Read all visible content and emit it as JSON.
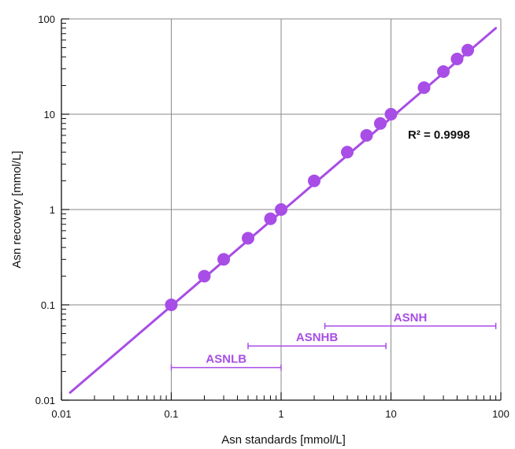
{
  "chart_data": {
    "type": "scatter",
    "xscale": "log",
    "yscale": "log",
    "xlim": [
      0.01,
      100
    ],
    "ylim": [
      0.01,
      100
    ],
    "xlabel": "Asn standards [mmol/L]",
    "ylabel": "Asn recovery [mmol/L]",
    "x_ticks": [
      "0.01",
      "0.1",
      "1",
      "10",
      "100"
    ],
    "y_ticks": [
      "0.01",
      "0.1",
      "1",
      "10",
      "100"
    ],
    "grid": true,
    "color": "#a84de6",
    "points": [
      {
        "x": 0.1,
        "y": 0.1
      },
      {
        "x": 0.2,
        "y": 0.2
      },
      {
        "x": 0.3,
        "y": 0.3
      },
      {
        "x": 0.5,
        "y": 0.5
      },
      {
        "x": 0.8,
        "y": 0.8
      },
      {
        "x": 1,
        "y": 1
      },
      {
        "x": 2,
        "y": 2
      },
      {
        "x": 4,
        "y": 4
      },
      {
        "x": 6,
        "y": 6
      },
      {
        "x": 8,
        "y": 8
      },
      {
        "x": 10,
        "y": 10
      },
      {
        "x": 20,
        "y": 19
      },
      {
        "x": 30,
        "y": 28
      },
      {
        "x": 40,
        "y": 38
      },
      {
        "x": 50,
        "y": 47
      }
    ],
    "fit_line": {
      "x": [
        0.012,
        90
      ],
      "y": [
        0.012,
        80
      ]
    },
    "r2_label": "R² = 0.9998",
    "r2_value": 0.9998,
    "ranges": [
      {
        "label": "ASNH",
        "from": 2.5,
        "to": 90,
        "y": 0.06
      },
      {
        "label": "ASNHB",
        "from": 0.5,
        "to": 9,
        "y": 0.037
      },
      {
        "label": "ASNLB",
        "from": 0.1,
        "to": 1,
        "y": 0.022
      }
    ]
  }
}
